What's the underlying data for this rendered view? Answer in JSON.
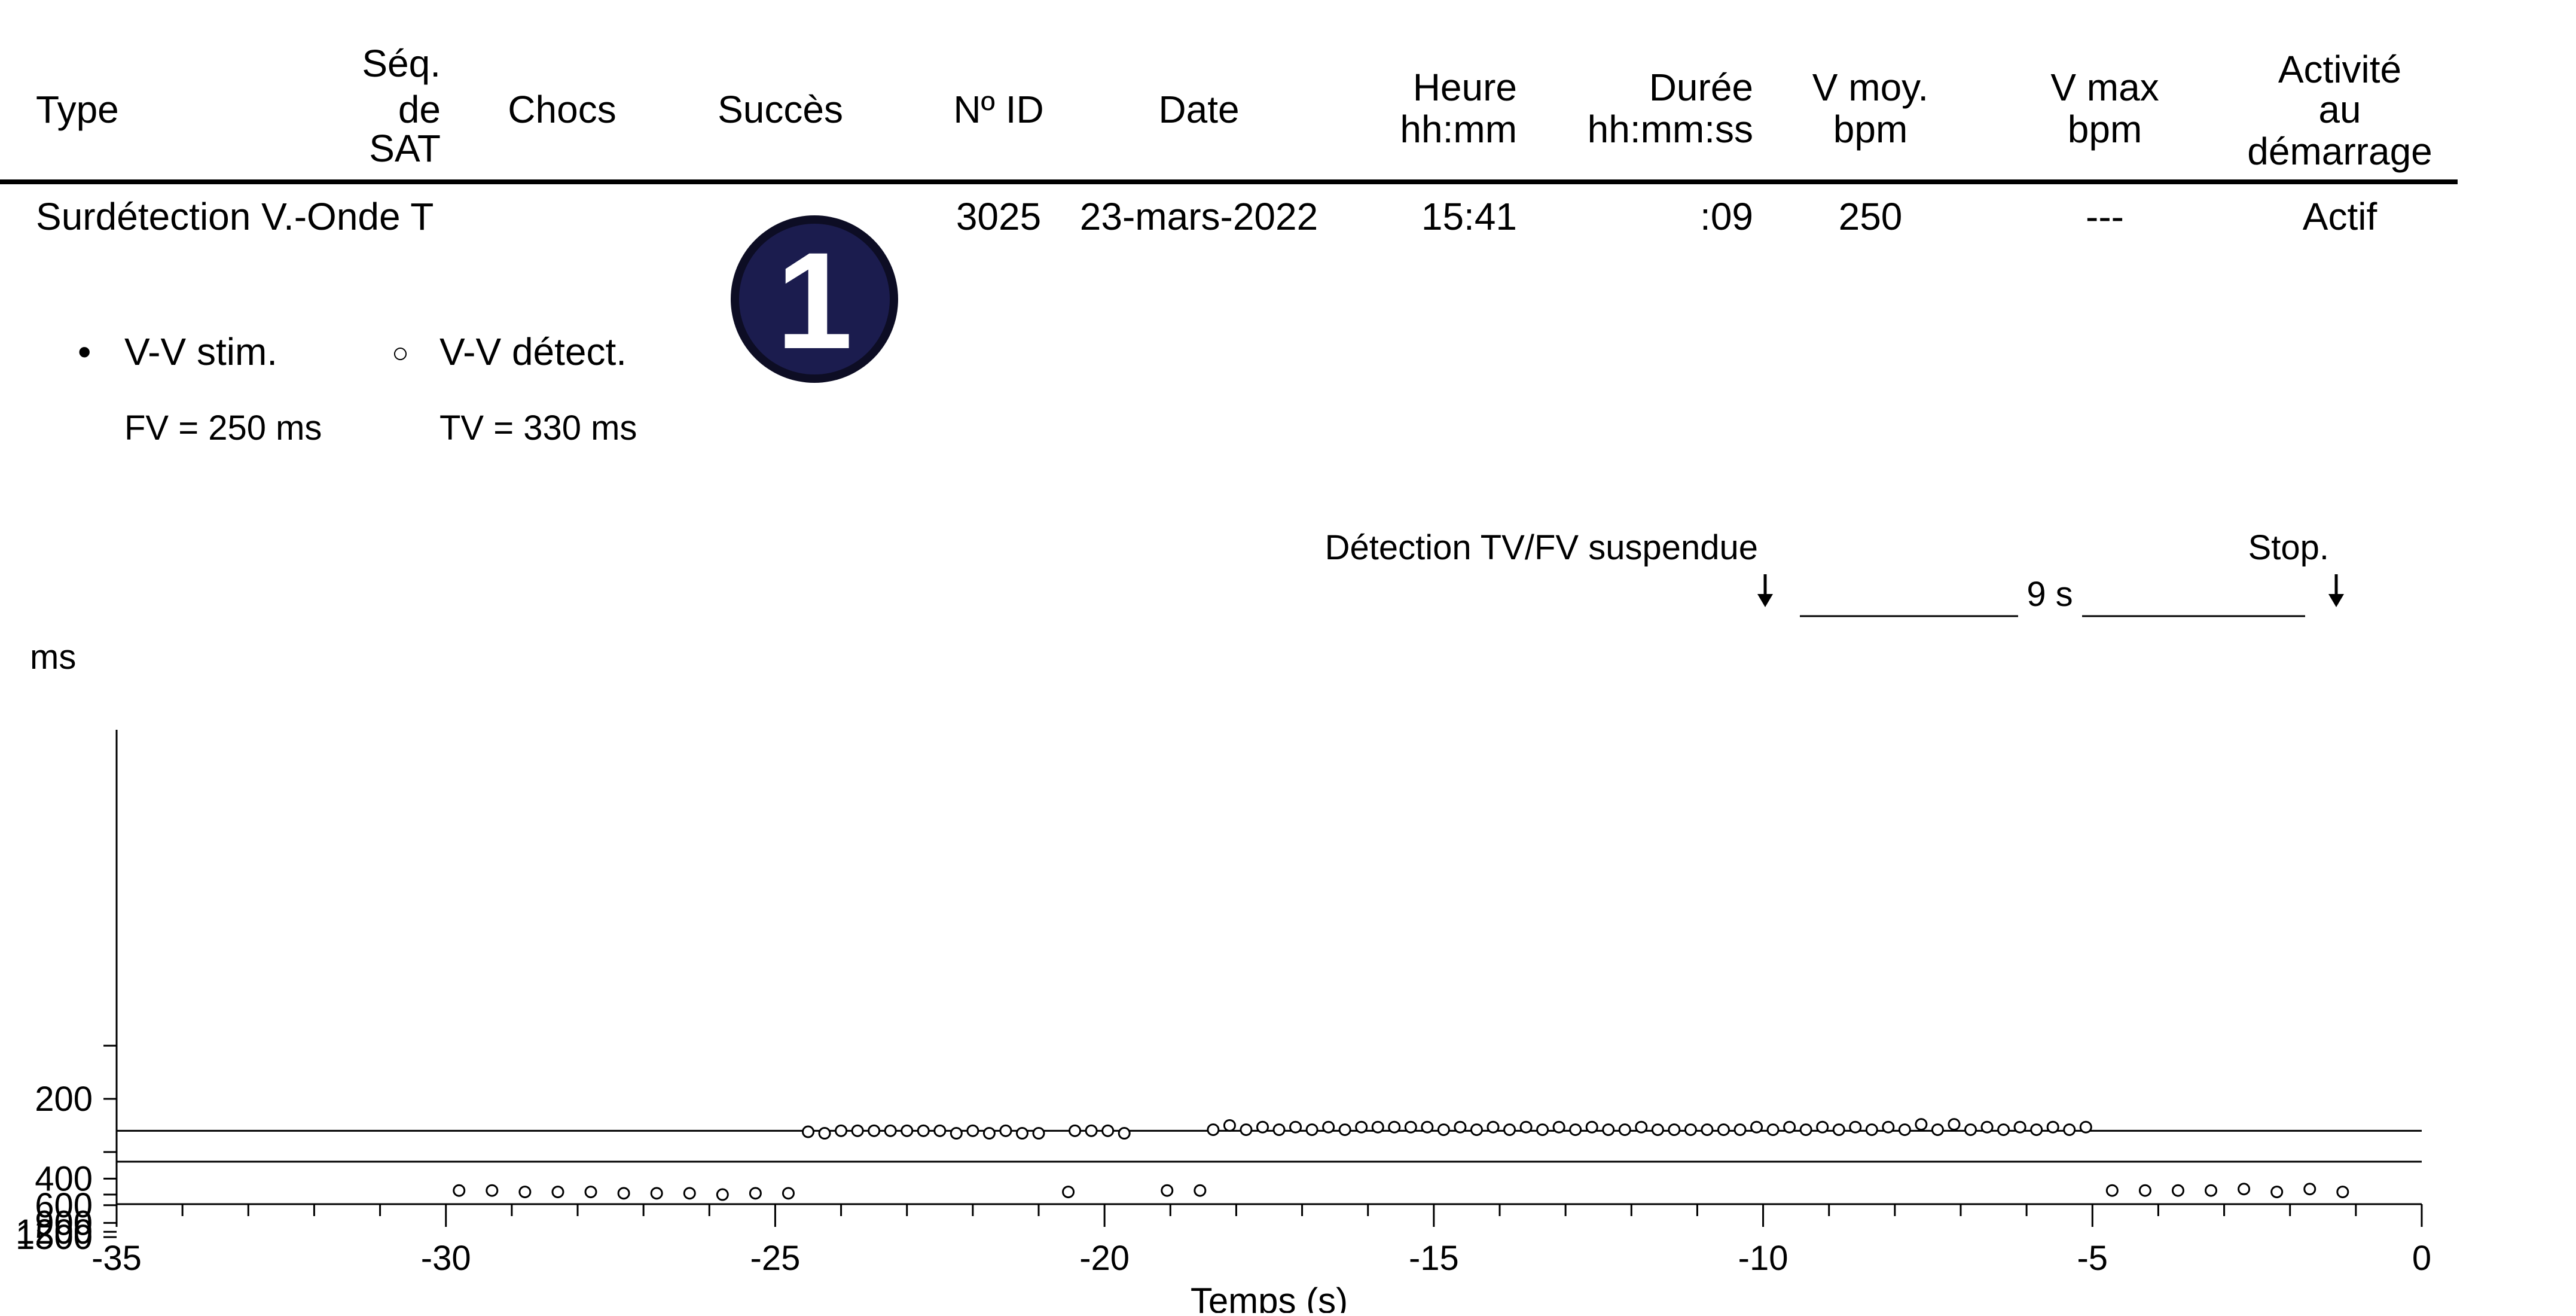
{
  "table": {
    "headers": {
      "type": "Type",
      "seq": [
        "Séq.",
        "de",
        "SAT"
      ],
      "chocs": "Chocs",
      "succes": "Succès",
      "id": "Nº ID",
      "date": "Date",
      "heure": [
        "Heure",
        "hh:mm"
      ],
      "duree": [
        "Durée",
        "hh:mm:ss"
      ],
      "vmoy": [
        "V moy.",
        "bpm"
      ],
      "vmax": [
        "V max",
        "bpm"
      ],
      "activite": [
        "Activité",
        "au",
        "démarrage"
      ]
    },
    "row": {
      "type": "Surdétection V.-Onde T",
      "seq": "",
      "chocs": "",
      "succes": "",
      "id": "3025",
      "date": "23-mars-2022",
      "heure": "15:41",
      "duree": ":09",
      "vmoy": "250",
      "vmax": "---",
      "activite": "Actif"
    }
  },
  "badge": {
    "label": "1",
    "color": "#1b1c4e"
  },
  "legend": {
    "paced": {
      "symbol": "•",
      "label": "V-V stim."
    },
    "sensed": {
      "symbol": "○",
      "label": "V-V détect."
    },
    "fv": "FV = 250 ms",
    "tv": "TV = 330 ms"
  },
  "annotations": {
    "suspended": "Détection TV/FV suspendue",
    "duration": "9 s",
    "stop": "Stop."
  },
  "chart_data": {
    "type": "scatter",
    "xlabel": "Temps (s)",
    "ylabel": "ms",
    "xlim": [
      -35,
      0
    ],
    "xticks": [
      -35,
      -30,
      -25,
      -20,
      -15,
      -10,
      -5,
      0
    ],
    "xtick_labels": [
      "-35",
      "-30",
      "-25",
      "-20",
      "-15",
      "-10",
      "-5",
      "0"
    ],
    "y_scale": "reciprocal",
    "yticks": [
      1500,
      1200,
      900,
      600,
      400,
      200
    ],
    "ytick_labels": [
      "1500",
      "1200",
      "900",
      "600",
      "400",
      "200"
    ],
    "y_minor_ticks": [
      500,
      300,
      150
    ],
    "reference_lines": [
      {
        "label": "TV",
        "value": 330
      },
      {
        "label": "FV",
        "value": 250
      }
    ],
    "series": [
      {
        "name": "V-V détect.",
        "marker": "open-circle",
        "x": [
          -29.8,
          -29.3,
          -28.8,
          -28.3,
          -27.8,
          -27.3,
          -26.8,
          -26.3,
          -25.8,
          -25.3,
          -24.8,
          -24.5,
          -24.25,
          -24.0,
          -23.75,
          -23.5,
          -23.25,
          -23.0,
          -22.75,
          -22.5,
          -22.25,
          -22.0,
          -21.75,
          -21.5,
          -21.25,
          -21.0,
          -20.55,
          -20.45,
          -20.2,
          -19.95,
          -19.7,
          -19.05,
          -18.55,
          -18.35,
          -18.1,
          -17.85,
          -17.6,
          -17.35,
          -17.1,
          -16.85,
          -16.6,
          -16.35,
          -16.1,
          -15.85,
          -15.6,
          -15.35,
          -15.1,
          -14.85,
          -14.6,
          -14.35,
          -14.1,
          -13.85,
          -13.6,
          -13.35,
          -13.1,
          -12.85,
          -12.6,
          -12.35,
          -12.1,
          -11.85,
          -11.6,
          -11.35,
          -11.1,
          -10.85,
          -10.6,
          -10.35,
          -10.1,
          -9.85,
          -9.6,
          -9.35,
          -9.1,
          -8.85,
          -8.6,
          -8.35,
          -8.1,
          -7.85,
          -7.6,
          -7.35,
          -7.1,
          -6.85,
          -6.6,
          -6.35,
          -6.1,
          -5.85,
          -5.6,
          -5.35,
          -5.1,
          -4.7,
          -4.2,
          -3.7,
          -3.2,
          -2.7,
          -2.2,
          -1.7,
          -1.2
        ],
        "y": [
          470,
          470,
          480,
          480,
          480,
          490,
          490,
          490,
          500,
          490,
          490,
          252,
          255,
          250,
          250,
          250,
          250,
          250,
          250,
          250,
          255,
          250,
          255,
          250,
          255,
          255,
          480,
          250,
          250,
          250,
          255,
          470,
          470,
          248,
          240,
          248,
          243,
          248,
          243,
          248,
          243,
          248,
          243,
          243,
          243,
          243,
          243,
          248,
          243,
          248,
          243,
          248,
          243,
          248,
          243,
          248,
          243,
          248,
          248,
          243,
          248,
          248,
          248,
          248,
          248,
          248,
          243,
          248,
          243,
          248,
          243,
          248,
          243,
          248,
          243,
          248,
          238,
          248,
          238,
          248,
          243,
          248,
          243,
          248,
          243,
          248,
          243,
          470,
          470,
          470,
          470,
          460,
          480,
          460,
          480
        ]
      }
    ]
  }
}
